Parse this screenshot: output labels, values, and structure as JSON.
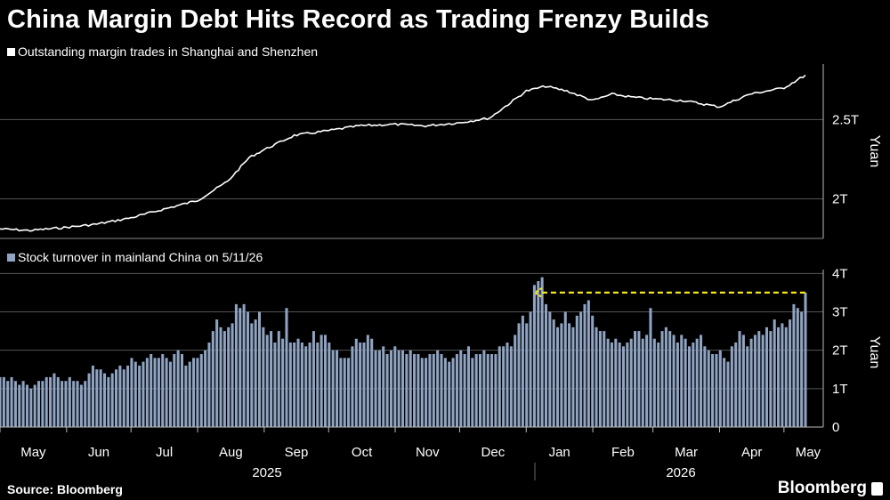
{
  "title": "China Margin Debt Hits Record as Trading Frenzy Builds",
  "source": "Source: Bloomberg",
  "brand": "Bloomberg",
  "colors": {
    "line": "#ffffff",
    "bars": "#8fa3c2",
    "reference": "#f2e61a",
    "grid": "#555555"
  },
  "x_axis": {
    "months": [
      "May",
      "Jun",
      "Jul",
      "Aug",
      "Sep",
      "Oct",
      "Nov",
      "Dec",
      "Jan",
      "Feb",
      "Mar",
      "Apr",
      "May"
    ],
    "years": [
      "2025",
      "2026"
    ]
  },
  "chart_data": [
    {
      "type": "line",
      "legend": "Outstanding margin trades in Shanghai and Shenzhen",
      "ylabel": "Yuan",
      "ytick_labels": [
        "2T",
        "2.5T"
      ],
      "ytick_values": [
        2.0,
        2.5
      ],
      "ylim": [
        1.75,
        2.85
      ],
      "xlim": [
        "2025-05-01",
        "2026-05-11"
      ],
      "x": [
        "2025-05-01",
        "2025-05-15",
        "2025-06-01",
        "2025-06-15",
        "2025-07-01",
        "2025-07-15",
        "2025-08-01",
        "2025-08-15",
        "2025-08-25",
        "2025-09-01",
        "2025-09-15",
        "2025-10-01",
        "2025-10-15",
        "2025-11-01",
        "2025-11-15",
        "2025-12-01",
        "2025-12-15",
        "2026-01-01",
        "2026-01-10",
        "2026-01-20",
        "2026-02-01",
        "2026-02-10",
        "2026-02-20",
        "2026-03-01",
        "2026-03-15",
        "2026-04-01",
        "2026-04-15",
        "2026-05-01",
        "2026-05-11"
      ],
      "values": [
        1.81,
        1.8,
        1.82,
        1.84,
        1.88,
        1.93,
        1.99,
        2.11,
        2.26,
        2.31,
        2.4,
        2.43,
        2.46,
        2.47,
        2.46,
        2.48,
        2.51,
        2.68,
        2.71,
        2.68,
        2.62,
        2.66,
        2.64,
        2.63,
        2.62,
        2.58,
        2.66,
        2.7,
        2.78
      ]
    },
    {
      "type": "bar",
      "legend": "Stock turnover in mainland China on 5/11/26",
      "ylabel": "Yuan",
      "ytick_labels": [
        "0",
        "1T",
        "2T",
        "3T",
        "4T"
      ],
      "ytick_values": [
        0,
        1,
        2,
        3,
        4
      ],
      "ylim": [
        0,
        4.1
      ],
      "xlim": [
        "2025-05-01",
        "2026-05-11"
      ],
      "x_start": "2025-05-01",
      "x_end": "2026-05-11",
      "reference_line": {
        "value": 3.5,
        "from": "2026-01-05",
        "to": "2026-05-11",
        "style": "dashed-arrow"
      },
      "values": [
        1.3,
        1.3,
        1.2,
        1.3,
        1.2,
        1.1,
        1.2,
        1.1,
        1.0,
        1.1,
        1.2,
        1.2,
        1.3,
        1.3,
        1.4,
        1.3,
        1.2,
        1.2,
        1.3,
        1.2,
        1.2,
        1.1,
        1.2,
        1.4,
        1.6,
        1.5,
        1.5,
        1.4,
        1.3,
        1.4,
        1.5,
        1.6,
        1.5,
        1.6,
        1.8,
        1.7,
        1.6,
        1.7,
        1.8,
        1.9,
        1.8,
        1.8,
        1.9,
        1.8,
        1.7,
        1.9,
        2.0,
        1.9,
        1.6,
        1.7,
        1.8,
        1.8,
        1.9,
        2.0,
        2.2,
        2.5,
        2.8,
        2.6,
        2.5,
        2.6,
        2.7,
        3.2,
        3.1,
        3.2,
        3.0,
        2.7,
        2.8,
        3.0,
        2.6,
        2.4,
        2.5,
        2.2,
        2.5,
        2.3,
        3.1,
        2.2,
        2.2,
        2.3,
        2.2,
        2.1,
        2.2,
        2.5,
        2.2,
        2.4,
        2.4,
        2.2,
        2.0,
        2.0,
        1.8,
        1.8,
        1.8,
        2.1,
        2.3,
        2.2,
        2.2,
        2.4,
        2.3,
        2.0,
        2.0,
        2.1,
        1.9,
        2.0,
        2.1,
        2.0,
        2.0,
        1.9,
        2.0,
        1.9,
        1.9,
        1.8,
        1.8,
        1.9,
        1.9,
        2.0,
        1.9,
        1.8,
        1.7,
        1.8,
        1.9,
        2.0,
        1.9,
        2.1,
        1.8,
        1.9,
        1.9,
        2.0,
        1.9,
        1.9,
        1.9,
        2.1,
        2.1,
        2.2,
        2.1,
        2.4,
        2.7,
        2.9,
        2.7,
        3.0,
        3.7,
        3.8,
        3.9,
        3.2,
        3.0,
        2.8,
        2.6,
        2.7,
        3.0,
        2.7,
        2.6,
        2.9,
        3.0,
        3.2,
        3.3,
        2.9,
        2.6,
        2.5,
        2.5,
        2.3,
        2.2,
        2.3,
        2.2,
        2.1,
        2.2,
        2.3,
        2.5,
        2.5,
        2.3,
        2.4,
        3.1,
        2.3,
        2.2,
        2.5,
        2.6,
        2.5,
        2.4,
        2.2,
        2.4,
        2.3,
        2.1,
        2.2,
        2.3,
        2.4,
        2.1,
        2.0,
        1.9,
        1.9,
        2.0,
        1.8,
        1.7,
        2.1,
        2.2,
        2.5,
        2.4,
        2.1,
        2.3,
        2.4,
        2.5,
        2.4,
        2.6,
        2.5,
        2.8,
        2.6,
        2.7,
        2.6,
        2.8,
        3.2,
        3.1,
        3.0,
        3.5
      ]
    }
  ]
}
